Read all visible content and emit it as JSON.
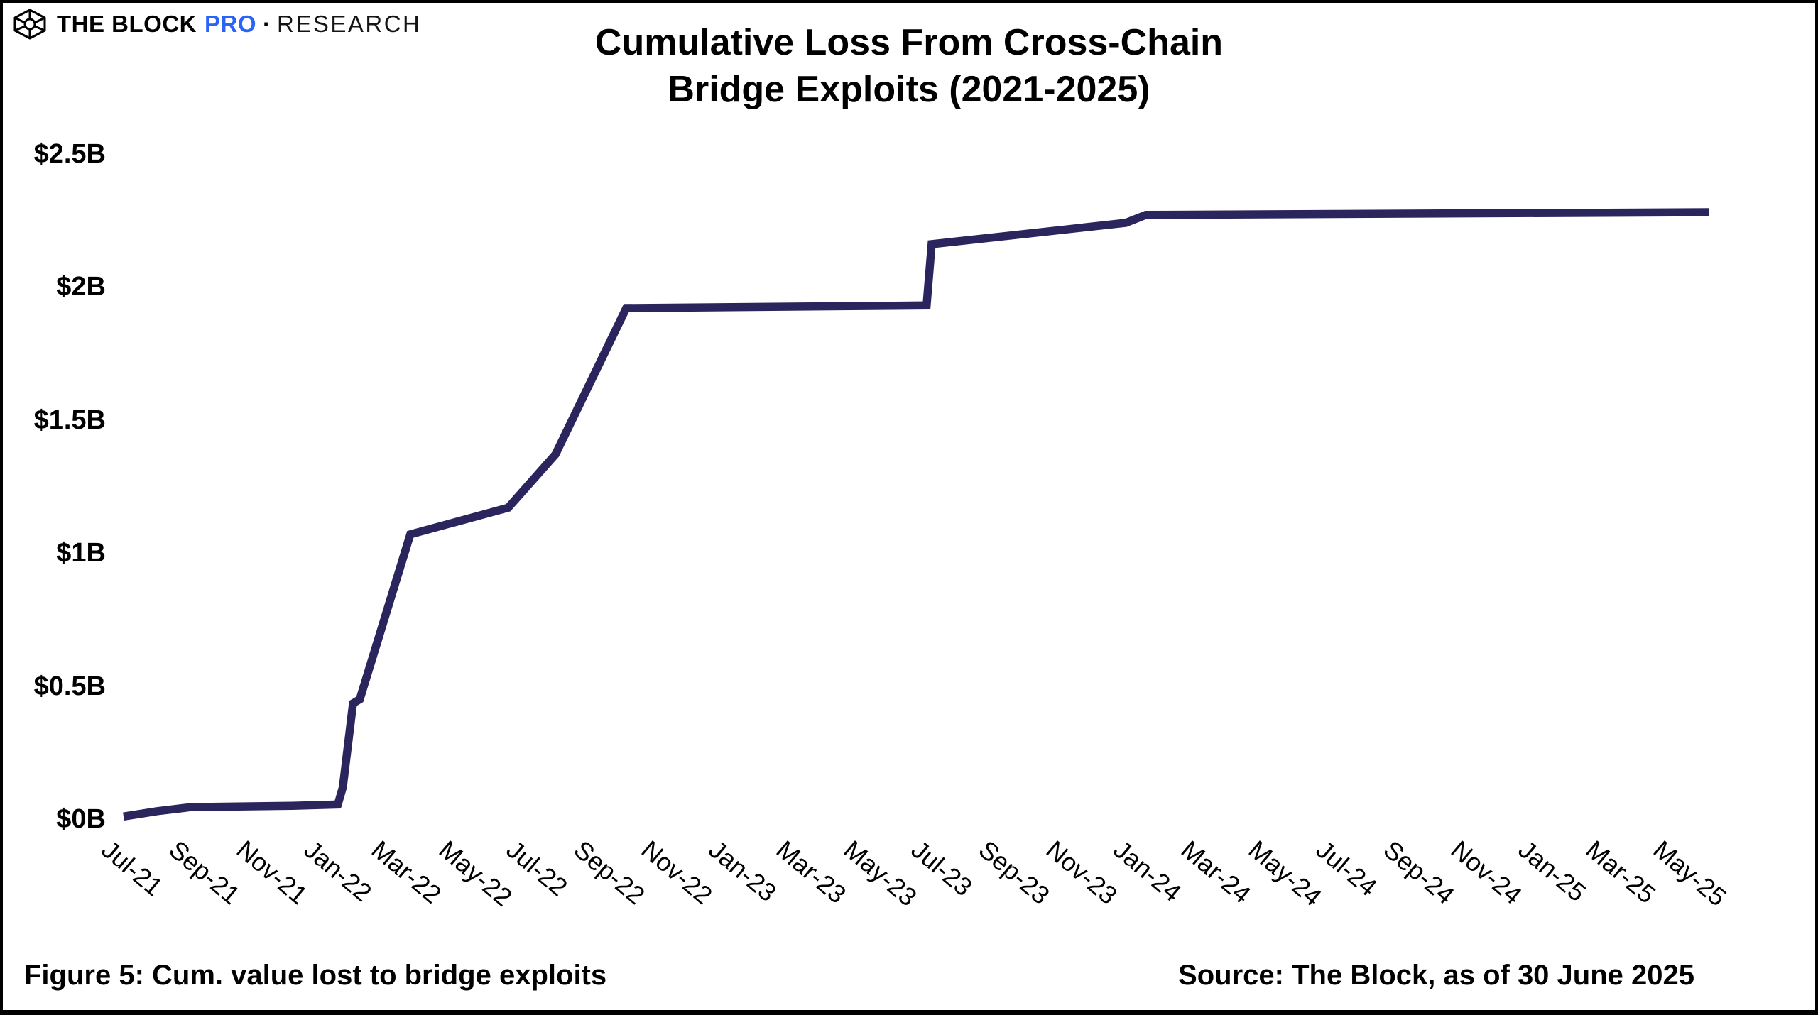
{
  "header": {
    "brand": "THE BLOCK",
    "pro": "PRO",
    "separator": "·",
    "research": "RESEARCH",
    "pro_color": "#2b63f6",
    "logo_icon": "the-block-cube-icon"
  },
  "title_line1": "Cumulative Loss From Cross-Chain",
  "title_line2": "Bridge Exploits (2021-2025)",
  "chart_data": {
    "type": "line",
    "title": "Cumulative Loss From Cross-Chain Bridge Exploits (2021-2025)",
    "series_name": "Cumulative value lost to bridge exploits",
    "unit": "USD billions",
    "line_color": "#2b255d",
    "grid": false,
    "legend": false,
    "ylim": [
      0,
      2.5
    ],
    "ylabel": "",
    "xlabel": "",
    "x_range_months_since_jul21": [
      0,
      47
    ],
    "y_ticks": [
      {
        "label": "$0B",
        "value": 0
      },
      {
        "label": "$0.5B",
        "value": 0.5
      },
      {
        "label": "$1B",
        "value": 1
      },
      {
        "label": "$1.5B",
        "value": 1.5
      },
      {
        "label": "$2B",
        "value": 2
      },
      {
        "label": "$2.5B",
        "value": 2.5
      }
    ],
    "x_tick_labels": [
      "Jul-21",
      "Sep-21",
      "Nov-21",
      "Jan-22",
      "Mar-22",
      "May-22",
      "Jul-22",
      "Sep-22",
      "Nov-22",
      "Jan-23",
      "Mar-23",
      "May-23",
      "Jul-23",
      "Sep-23",
      "Nov-23",
      "Jan-24",
      "Mar-24",
      "May-24",
      "Jul-24",
      "Sep-24",
      "Nov-24",
      "Jan-25",
      "Mar-25",
      "May-25"
    ],
    "x_tick_step_months": 2,
    "points": [
      {
        "label": "Jul-21",
        "m": 0,
        "value": 0.01
      },
      {
        "label": "Aug-21",
        "m": 1,
        "value": 0.03
      },
      {
        "label": "Sep-21",
        "m": 2,
        "value": 0.045
      },
      {
        "label": "Dec-21",
        "m": 5,
        "value": 0.05
      },
      {
        "label": "mid Jan-22",
        "m": 6.35,
        "value": 0.055
      },
      {
        "label": "late Jan-22",
        "m": 6.5,
        "value": 0.12
      },
      {
        "label": "early Feb-22",
        "m": 6.8,
        "value": 0.435
      },
      {
        "label": "Feb-22",
        "m": 7.0,
        "value": 0.45
      },
      {
        "label": "late Mar-22",
        "m": 8.5,
        "value": 1.07
      },
      {
        "label": "mid Jun-22",
        "m": 11.4,
        "value": 1.17
      },
      {
        "label": "early Aug-22",
        "m": 12.8,
        "value": 1.37
      },
      {
        "label": "early Oct-22",
        "m": 14.9,
        "value": 1.92
      },
      {
        "label": "late Jun-23",
        "m": 23.8,
        "value": 1.93
      },
      {
        "label": "early Jul-23",
        "m": 23.95,
        "value": 2.16
      },
      {
        "label": "Dec-23",
        "m": 29.7,
        "value": 2.24
      },
      {
        "label": "early Jan-24",
        "m": 30.3,
        "value": 2.27
      },
      {
        "label": "Jun-25",
        "m": 47,
        "value": 2.28
      }
    ]
  },
  "footer": {
    "caption": "Figure 5: Cum. value lost to bridge exploits",
    "source": "Source: The Block, as of 30 June 2025"
  }
}
